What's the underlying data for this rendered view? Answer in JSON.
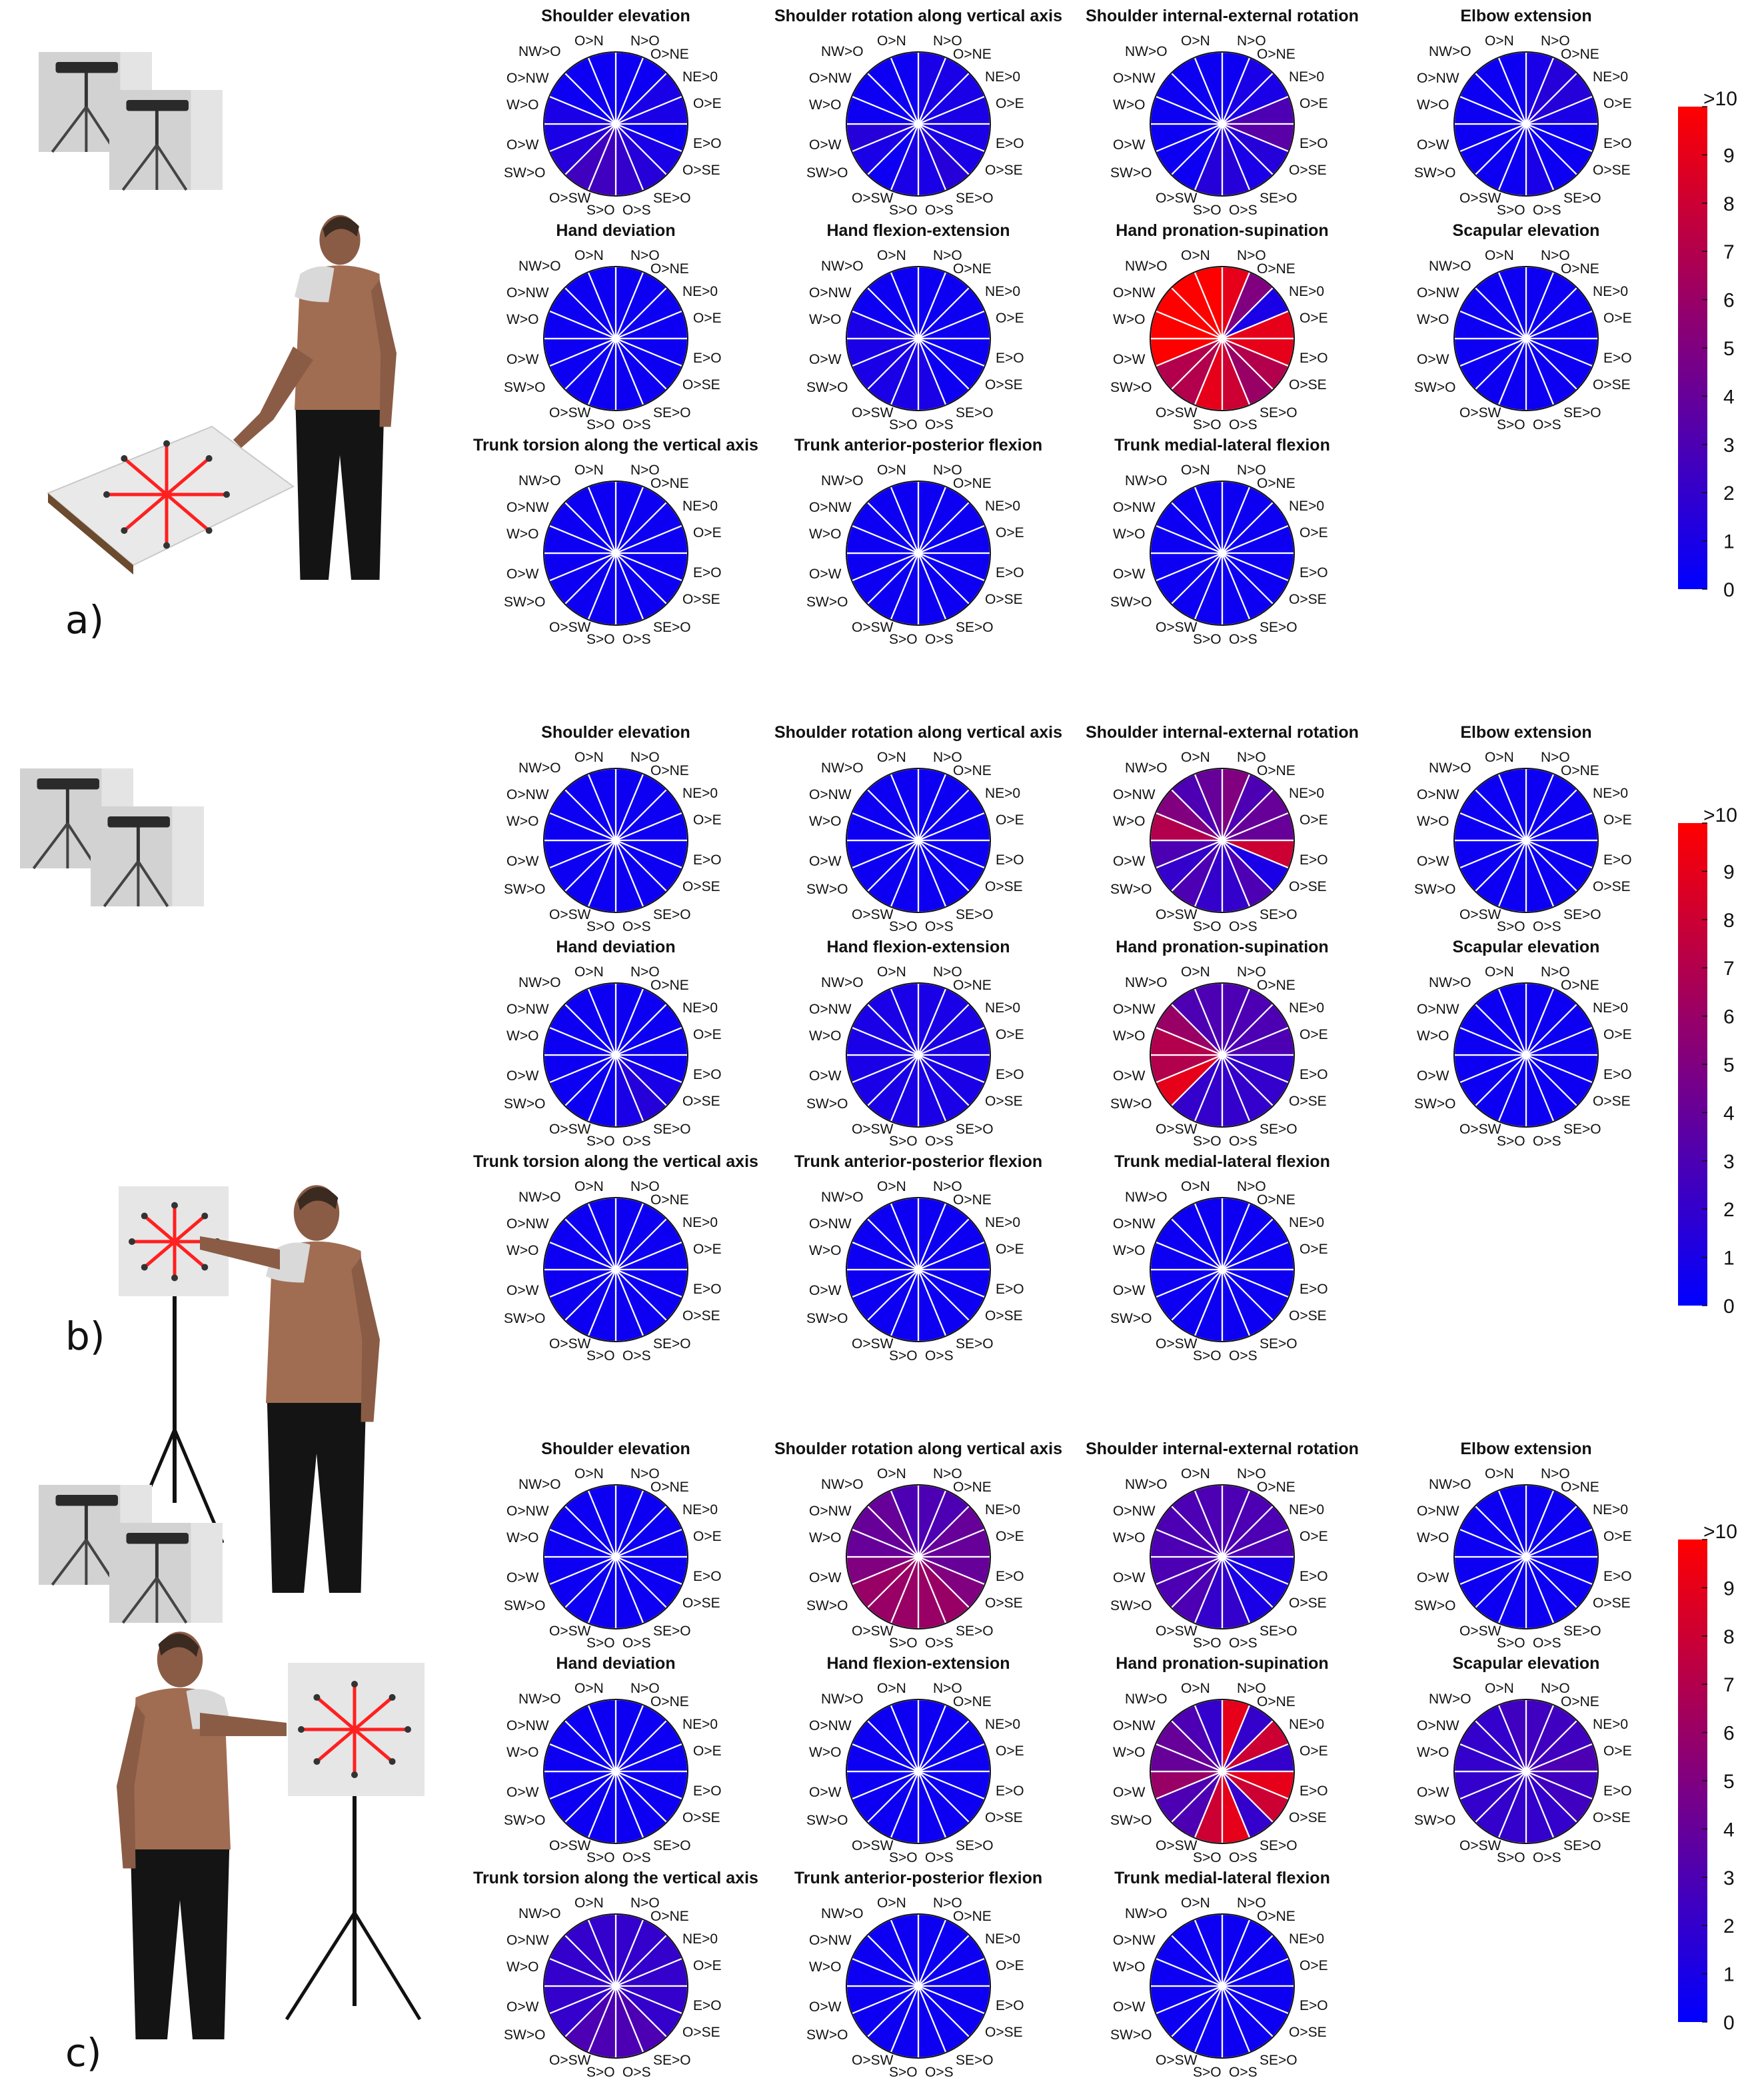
{
  "direction_labels": {
    "n_in": "O>N",
    "n_out": "N>O",
    "ne_in": "O>NE",
    "ne_out": "NE>0",
    "e_in": "O>E",
    "e_out": "E>O",
    "se_in": "O>SE",
    "se_out": "SE>O",
    "s_in": "O>S",
    "s_out": "S>O",
    "sw_in": "O>SW",
    "sw_out": "SW>O",
    "w_in": "O>W",
    "w_out": "W>O",
    "nw_in": "O>NW",
    "nw_out": "NW>O"
  },
  "colorbar": {
    "ticks": [
      "0",
      "1",
      "2",
      "3",
      "4",
      "5",
      "6",
      "7",
      "8",
      "9",
      ">10"
    ],
    "min_color": "#0000ff",
    "max_color": "#ff0000"
  },
  "chart_data": [
    {
      "type": "polar-heatmap",
      "panel_label": "a)",
      "colorbar_range": [
        0,
        10
      ],
      "sectors": 16,
      "charts": [
        {
          "title": "Shoulder elevation",
          "values": [
            0.5,
            0.5,
            1,
            1,
            0.5,
            1,
            1.5,
            2,
            2.5,
            2.5,
            1.5,
            1,
            1,
            0.5,
            0.5,
            0.5
          ]
        },
        {
          "title": "Shoulder rotation along vertical axis",
          "values": [
            1,
            1,
            1,
            1,
            1,
            1,
            1.5,
            1,
            1,
            0.5,
            1,
            1.5,
            0.5,
            0.5,
            0.5,
            0.5
          ]
        },
        {
          "title": "Shoulder internal-external rotation",
          "values": [
            0.5,
            1,
            1,
            3,
            3.5,
            1.5,
            1,
            1.5,
            1.5,
            0.5,
            0.5,
            0.5,
            0.5,
            0.5,
            0.5,
            0.5
          ]
        },
        {
          "title": "Elbow extension",
          "values": [
            1,
            1.5,
            1.5,
            1,
            0.5,
            0.5,
            0.5,
            1,
            0.5,
            0.5,
            0.5,
            0.5,
            0.5,
            0.5,
            0.5,
            0.5
          ]
        },
        {
          "title": "Hand deviation",
          "values": [
            0.5,
            0.5,
            0.5,
            0.5,
            0.5,
            0.5,
            0.5,
            0.5,
            0.5,
            0.5,
            0.5,
            0.5,
            0.5,
            0.5,
            0.5,
            0.5
          ]
        },
        {
          "title": "Hand flexion-extension",
          "values": [
            0.5,
            0.5,
            0.5,
            0.5,
            0.5,
            0.5,
            0.5,
            1,
            1,
            1,
            1,
            1,
            1,
            0.5,
            0.5,
            0.5
          ]
        },
        {
          "title": "Hand pronation-supination",
          "values": [
            9,
            5,
            1,
            9,
            9,
            7,
            6,
            8,
            9,
            7,
            7,
            10,
            10,
            10,
            10,
            10
          ]
        },
        {
          "title": "Scapular elevation",
          "values": [
            0.5,
            0.5,
            0.5,
            0.5,
            0.5,
            0.5,
            0.5,
            0.5,
            0.5,
            0.5,
            0.5,
            0.5,
            0.5,
            0.5,
            0.5,
            0.5
          ]
        },
        {
          "title": "Trunk torsion along the vertical axis",
          "values": [
            0.5,
            0.5,
            0.5,
            0.5,
            0.5,
            0.5,
            0.5,
            0.5,
            0.5,
            0.5,
            0.5,
            0.5,
            0.5,
            0.5,
            0.5,
            0.5
          ]
        },
        {
          "title": "Trunk anterior-posterior flexion",
          "values": [
            0.5,
            0.5,
            0.5,
            0.5,
            0.5,
            0.5,
            0.5,
            0.5,
            0.5,
            0.5,
            0.5,
            0.5,
            0.5,
            0.5,
            0.5,
            0.5
          ]
        },
        {
          "title": "Trunk medial-lateral flexion",
          "values": [
            0.5,
            0.5,
            0.5,
            0.5,
            0.5,
            0.5,
            0.5,
            0.5,
            0.5,
            0.5,
            0.5,
            0.5,
            0.5,
            0.5,
            0.5,
            0.5
          ]
        }
      ]
    },
    {
      "type": "polar-heatmap",
      "panel_label": "b)",
      "colorbar_range": [
        0,
        10
      ],
      "sectors": 16,
      "charts": [
        {
          "title": "Shoulder elevation",
          "values": [
            0.5,
            0.5,
            0.5,
            0.5,
            0.5,
            0.5,
            0.5,
            0.5,
            0.5,
            0.5,
            0.5,
            0.5,
            0.5,
            0.5,
            0.5,
            0.5
          ]
        },
        {
          "title": "Shoulder rotation along vertical axis",
          "values": [
            0.5,
            0.5,
            0.5,
            0.5,
            0.5,
            0.5,
            0.5,
            0.5,
            0.5,
            0.5,
            0.5,
            0.5,
            0.5,
            0.5,
            0.5,
            0.5
          ]
        },
        {
          "title": "Shoulder internal-external rotation",
          "values": [
            5,
            3,
            4,
            4,
            8,
            1,
            3,
            2,
            2,
            3,
            2,
            3,
            7,
            5,
            3,
            4
          ]
        },
        {
          "title": "Elbow extension",
          "values": [
            0.5,
            0.5,
            0.5,
            0.5,
            0.5,
            0.5,
            0.5,
            0.5,
            0.5,
            0.5,
            0.5,
            0.5,
            0.5,
            0.5,
            0.5,
            0.5
          ]
        },
        {
          "title": "Hand deviation",
          "values": [
            0.5,
            0.5,
            0.5,
            0.5,
            0.5,
            1,
            1.5,
            1,
            0.5,
            0.5,
            0.5,
            0.5,
            0.5,
            0.5,
            0.5,
            0.5
          ]
        },
        {
          "title": "Hand flexion-extension",
          "values": [
            1,
            1,
            1,
            1,
            1,
            1,
            1,
            1,
            1,
            1,
            1,
            1,
            1,
            1,
            1,
            1
          ]
        },
        {
          "title": "Hand pronation-supination",
          "values": [
            3,
            3,
            3,
            3,
            2,
            2,
            2,
            2,
            2,
            2,
            9,
            7,
            7,
            6,
            3,
            3
          ]
        },
        {
          "title": "Scapular elevation",
          "values": [
            0.5,
            0.5,
            0.5,
            0.5,
            0.5,
            0.5,
            0.5,
            0.5,
            0.5,
            0.5,
            0.5,
            0.5,
            0.5,
            0.5,
            0.5,
            0.5
          ]
        },
        {
          "title": "Trunk torsion along the vertical axis",
          "values": [
            0.5,
            0.5,
            0.5,
            0.5,
            0.5,
            0.5,
            0.5,
            0.5,
            0.5,
            0.5,
            0.5,
            0.5,
            0.5,
            0.5,
            0.5,
            0.5
          ]
        },
        {
          "title": "Trunk anterior-posterior flexion",
          "values": [
            0.5,
            0.5,
            0.5,
            0.5,
            0.5,
            0.5,
            0.5,
            0.5,
            0.5,
            0.5,
            0.5,
            0.5,
            0.5,
            0.5,
            0.5,
            0.5
          ]
        },
        {
          "title": "Trunk medial-lateral flexion",
          "values": [
            0.5,
            0.5,
            0.5,
            0.5,
            0.5,
            0.5,
            0.5,
            0.5,
            0.5,
            0.5,
            0.5,
            0.5,
            0.5,
            0.5,
            0.5,
            0.5
          ]
        }
      ]
    },
    {
      "type": "polar-heatmap",
      "panel_label": "c)",
      "colorbar_range": [
        0,
        10
      ],
      "sectors": 16,
      "charts": [
        {
          "title": "Shoulder elevation",
          "values": [
            0.5,
            0.5,
            0.5,
            0.5,
            0.5,
            0.5,
            0.5,
            0.5,
            0.5,
            0.5,
            0.5,
            0.5,
            0.5,
            0.5,
            0.5,
            0.5
          ]
        },
        {
          "title": "Shoulder rotation along vertical axis",
          "values": [
            3,
            3,
            4,
            4,
            4,
            5,
            6,
            6,
            6,
            6,
            6,
            5,
            4,
            4,
            4,
            3
          ]
        },
        {
          "title": "Shoulder internal-external rotation",
          "values": [
            3,
            3,
            3,
            3,
            1,
            1,
            1,
            2,
            2,
            3,
            3,
            3,
            3,
            3,
            3,
            3
          ]
        },
        {
          "title": "Elbow extension",
          "values": [
            0.5,
            0.5,
            0.5,
            0.5,
            0.5,
            0.5,
            0.5,
            0.5,
            0.5,
            0.5,
            0.5,
            0.5,
            0.5,
            0.5,
            0.5,
            0.5
          ]
        },
        {
          "title": "Hand deviation",
          "values": [
            0.5,
            0.5,
            0.5,
            0.5,
            0.5,
            0.5,
            0.5,
            0.5,
            0.5,
            0.5,
            0.5,
            0.5,
            0.5,
            0.5,
            0.5,
            0.5
          ]
        },
        {
          "title": "Hand flexion-extension",
          "values": [
            0.5,
            0.5,
            0.5,
            0.5,
            0.5,
            0.5,
            0.5,
            0.5,
            0.5,
            0.5,
            0.5,
            0.5,
            0.5,
            0.5,
            0.5,
            0.5
          ]
        },
        {
          "title": "Hand pronation-supination",
          "values": [
            9,
            2,
            8,
            2,
            9,
            8,
            2,
            9,
            8,
            3,
            3,
            6,
            4,
            4,
            3,
            2
          ]
        },
        {
          "title": "Scapular elevation",
          "values": [
            2.5,
            2.5,
            2.5,
            3,
            2.5,
            2.5,
            2,
            2,
            2,
            2,
            2,
            2,
            2,
            2,
            2,
            2.5
          ]
        },
        {
          "title": "Trunk torsion along the vertical axis",
          "values": [
            2,
            2,
            2,
            2,
            2,
            2,
            3,
            3,
            3,
            3,
            2,
            2,
            2,
            2,
            2,
            2
          ]
        },
        {
          "title": "Trunk anterior-posterior flexion",
          "values": [
            0.5,
            0.5,
            0.5,
            0.5,
            0.5,
            0.5,
            0.5,
            0.5,
            0.5,
            0.5,
            0.5,
            0.5,
            0.5,
            0.5,
            0.5,
            0.5
          ]
        },
        {
          "title": "Trunk medial-lateral flexion",
          "values": [
            0.5,
            0.5,
            0.5,
            0.5,
            0.5,
            0.5,
            0.5,
            0.5,
            0.5,
            0.5,
            0.5,
            0.5,
            0.5,
            0.5,
            0.5,
            0.5
          ]
        }
      ]
    }
  ]
}
